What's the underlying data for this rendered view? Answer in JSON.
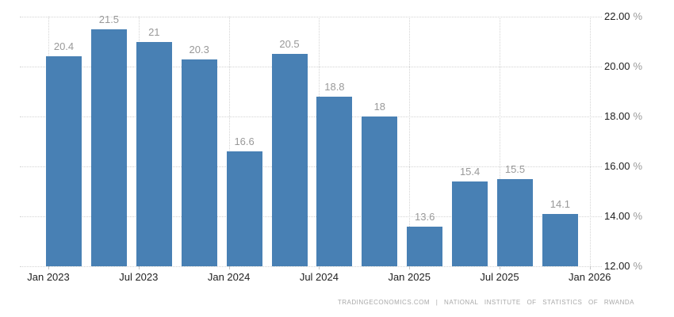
{
  "chart_data": {
    "type": "bar",
    "title": "",
    "categories": [
      "Jan 2023",
      "Apr 2023",
      "Jul 2023",
      "Oct 2023",
      "Jan 2024",
      "Apr 2024",
      "Jul 2024",
      "Oct 2024",
      "Jan 2025",
      "Apr 2025",
      "Jul 2025",
      "Oct 2025"
    ],
    "values": [
      20.4,
      21.5,
      21,
      20.3,
      16.6,
      20.5,
      18.8,
      18,
      13.6,
      15.4,
      15.5,
      14.1
    ],
    "value_labels": [
      "20.4",
      "21.5",
      "21",
      "20.3",
      "16.6",
      "20.5",
      "18.8",
      "18",
      "13.6",
      "15.4",
      "15.5",
      "14.1"
    ],
    "x_tick_labels": [
      "Jan 2023",
      "Jul 2023",
      "Jan 2024",
      "Jul 2024",
      "Jan 2025",
      "Jul 2025",
      "Jan 2026"
    ],
    "y_tick_labels": [
      "22.00 %",
      "20.00 %",
      "18.00 %",
      "16.00 %",
      "14.00 %",
      "12.00 %"
    ],
    "y_tick_values": [
      22,
      20,
      18,
      16,
      14,
      12
    ],
    "ylim": [
      12,
      22
    ],
    "xlabel": "",
    "ylabel": "",
    "grid": true,
    "legend_position": "none",
    "y_axis_side": "right",
    "bar_color": "#4880b4",
    "grid_color": "#d4d4d4",
    "axis_label_color": "#222222",
    "value_label_color": "#999999"
  },
  "footer": {
    "text": "TRADINGECONOMICS.COM | NATIONAL INSTITUTE OF STATISTICS OF RWANDA"
  }
}
